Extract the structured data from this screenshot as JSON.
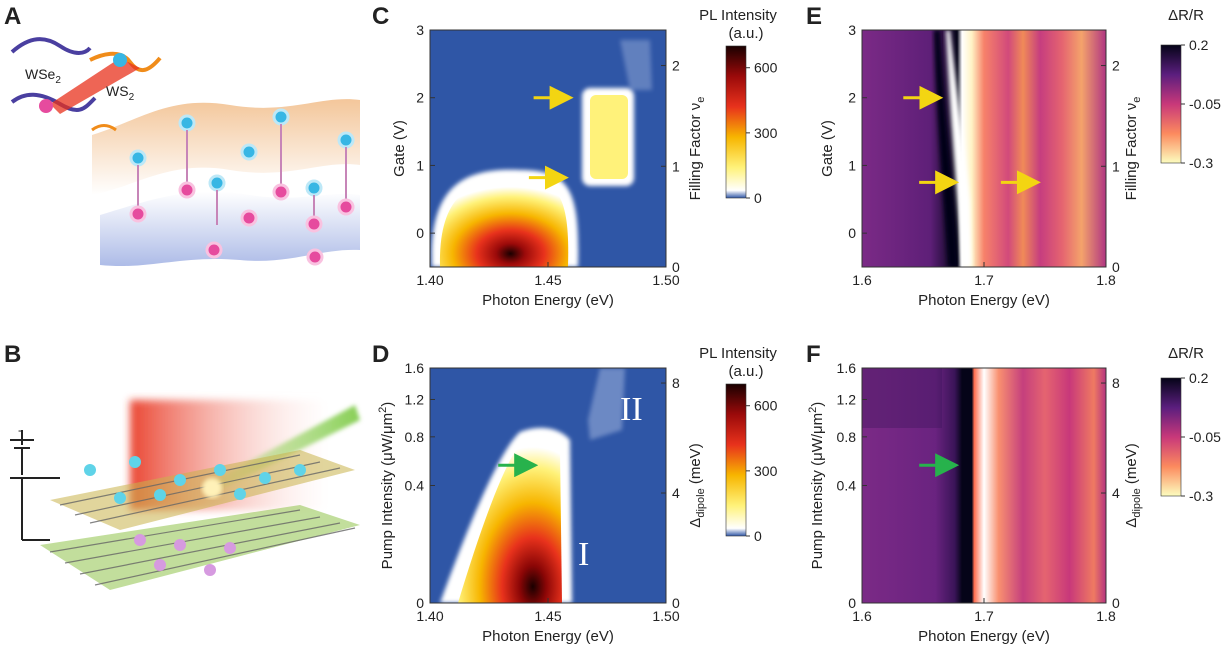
{
  "panels": {
    "A": {
      "letter": "A",
      "label_wse2": "WSe",
      "label_wse2_sub": "2",
      "label_ws2": "WS",
      "label_ws2_sub": "2"
    },
    "B": {
      "letter": "B"
    },
    "C": {
      "letter": "C"
    },
    "D": {
      "letter": "D"
    },
    "E": {
      "letter": "E"
    },
    "F": {
      "letter": "F"
    }
  },
  "colors": {
    "pl_background": "#2f56a6",
    "arrow_yellow": "#f3d512",
    "arrow_green": "#27b24c"
  },
  "chart_data": [
    {
      "id": "C",
      "type": "heatmap",
      "xlabel": "Photon Energy (eV)",
      "ylabel": "Gate (V)",
      "y2label": "Filling Factor ν",
      "y2label_sub": "e",
      "xlim": [
        1.4,
        1.5
      ],
      "ylim": [
        -0.5,
        3.0
      ],
      "xticks": [
        "1.40",
        "1.45",
        "1.50"
      ],
      "yticks": [
        "0",
        "1",
        "2",
        "3"
      ],
      "y2ticks": [
        "0",
        "1",
        "2"
      ],
      "colorbar": {
        "title": [
          "PL Intensity",
          "(a.u.)"
        ],
        "ticks": [
          "0",
          "300",
          "600"
        ],
        "range": [
          0,
          700
        ]
      },
      "features": [
        {
          "name": "correlated insulator emission",
          "x_range": [
            1.465,
            1.478
          ],
          "y_range": [
            0.8,
            2.1
          ],
          "max_value": 200
        },
        {
          "name": "main emission",
          "x_range": [
            1.41,
            1.465
          ],
          "y_range": [
            -0.5,
            0.85
          ],
          "peak_x": 1.44,
          "max_value": 700
        }
      ],
      "arrows": [
        {
          "x": 1.46,
          "y": 2.0,
          "color": "yellow"
        },
        {
          "x": 1.458,
          "y": 0.82,
          "color": "yellow"
        }
      ]
    },
    {
      "id": "D",
      "type": "heatmap",
      "xlabel": "Photon Energy (eV)",
      "ylabel": "Pump Intensity (μW/μm",
      "ylabel_sup": "2",
      "ylabel_end": ")",
      "y2label": "Δ",
      "y2label_sub": "dipole",
      "y2label_end": " (meV)",
      "xlim": [
        1.4,
        1.5
      ],
      "xticks": [
        "1.40",
        "1.45",
        "1.50"
      ],
      "yticks": [
        "0",
        "0.4",
        "0.8",
        "1.2",
        "1.6"
      ],
      "y2ticks": [
        "0",
        "4",
        "8"
      ],
      "colorbar": {
        "title": [
          "PL Intensity",
          "(a.u.)"
        ],
        "ticks": [
          "0",
          "300",
          "600"
        ],
        "range": [
          0,
          700
        ]
      },
      "annotations": [
        "I",
        "II"
      ],
      "arrows": [
        {
          "x": 1.445,
          "y_label": "0.55",
          "color": "green"
        }
      ]
    },
    {
      "id": "E",
      "type": "heatmap",
      "xlabel": "Photon Energy (eV)",
      "ylabel": "Gate (V)",
      "y2label": "Filling Factor ν",
      "y2label_sub": "e",
      "xlim": [
        1.6,
        1.8
      ],
      "ylim": [
        -0.5,
        3.0
      ],
      "xticks": [
        "1.6",
        "1.7",
        "1.8"
      ],
      "yticks": [
        "0",
        "1",
        "2",
        "3"
      ],
      "y2ticks": [
        "0",
        "1",
        "2"
      ],
      "colorbar": {
        "title": [
          "ΔR/R"
        ],
        "ticks": [
          "0.2",
          "-0.05",
          "-0.3"
        ],
        "range": [
          -0.3,
          0.2
        ]
      },
      "arrows": [
        {
          "x": 1.665,
          "y": 2.0,
          "color": "yellow"
        },
        {
          "x": 1.678,
          "y": 0.75,
          "color": "yellow"
        },
        {
          "x": 1.745,
          "y": 0.75,
          "color": "yellow"
        }
      ]
    },
    {
      "id": "F",
      "type": "heatmap",
      "xlabel": "Photon Energy (eV)",
      "ylabel": "Pump Intensity (μW/μm",
      "ylabel_sup": "2",
      "ylabel_end": ")",
      "y2label": "Δ",
      "y2label_sub": "dipole",
      "y2label_end": " (meV)",
      "xlim": [
        1.6,
        1.8
      ],
      "xticks": [
        "1.6",
        "1.7",
        "1.8"
      ],
      "yticks": [
        "0",
        "0.4",
        "0.8",
        "1.2",
        "1.6"
      ],
      "y2ticks": [
        "0",
        "4",
        "8"
      ],
      "colorbar": {
        "title": [
          "ΔR/R"
        ],
        "ticks": [
          "0.2",
          "-0.05",
          "-0.3"
        ],
        "range": [
          -0.3,
          0.2
        ]
      },
      "arrows": [
        {
          "x": 1.678,
          "y_label": "0.55",
          "color": "green"
        }
      ]
    }
  ]
}
